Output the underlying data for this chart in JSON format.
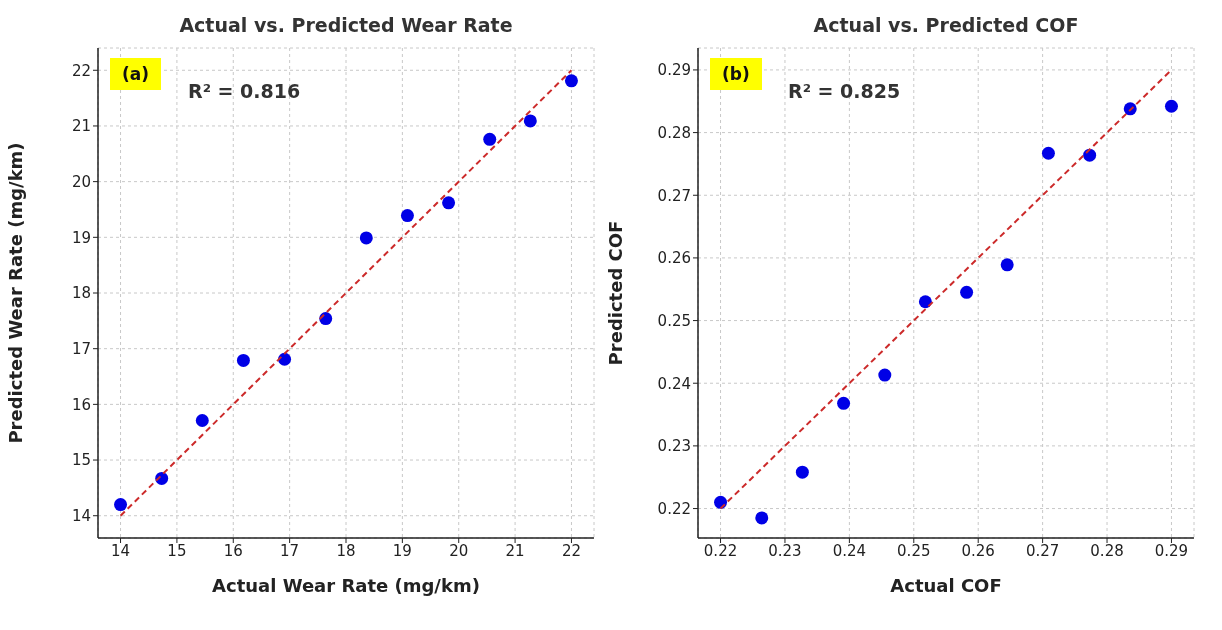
{
  "chart_data": [
    {
      "type": "scatter",
      "title": "Actual vs. Predicted Wear Rate",
      "xlabel": "Actual Wear Rate (mg/km)",
      "ylabel": "Predicted Wear Rate (mg/km)",
      "annotations": [
        "(a)",
        "R² = 0.816"
      ],
      "xlim": [
        13.6,
        22.4
      ],
      "ylim": [
        13.6,
        22.4
      ],
      "xticks": [
        14,
        15,
        16,
        17,
        18,
        19,
        20,
        21,
        22
      ],
      "yticks": [
        14,
        15,
        16,
        17,
        18,
        19,
        20,
        21,
        22
      ],
      "grid": true,
      "series": [
        {
          "marker": "circle",
          "color": "#0000e6",
          "x": [
            14,
            14.73,
            15.45,
            16.18,
            16.91,
            17.64,
            18.36,
            19.09,
            19.82,
            20.55,
            21.27,
            22
          ],
          "values": [
            14.2,
            14.67,
            15.71,
            16.79,
            16.81,
            17.54,
            18.99,
            19.39,
            19.62,
            20.76,
            21.09,
            21.81
          ]
        },
        {
          "type": "line",
          "marker": "none",
          "color": "#cc2a2a",
          "line_style": "dashed",
          "x": [
            14,
            22
          ],
          "values": [
            14,
            22
          ]
        }
      ]
    },
    {
      "type": "scatter",
      "title": "Actual vs. Predicted COF",
      "xlabel": "Actual COF",
      "ylabel": "Predicted COF",
      "annotations": [
        "(b)",
        "R² = 0.825"
      ],
      "xlim": [
        0.2165,
        0.2935
      ],
      "ylim": [
        0.2153,
        0.2935
      ],
      "xticks": [
        0.22,
        0.23,
        0.24,
        0.25,
        0.26,
        0.27,
        0.28,
        0.29
      ],
      "yticks": [
        0.22,
        0.23,
        0.24,
        0.25,
        0.26,
        0.27,
        0.28,
        0.29
      ],
      "grid": true,
      "series": [
        {
          "marker": "circle",
          "color": "#0000e6",
          "x": [
            0.22,
            0.2264,
            0.2327,
            0.2391,
            0.2455,
            0.2518,
            0.2582,
            0.2645,
            0.2709,
            0.2773,
            0.2836,
            0.29
          ],
          "values": [
            0.221,
            0.2185,
            0.2258,
            0.2368,
            0.2413,
            0.253,
            0.2545,
            0.2589,
            0.2767,
            0.2764,
            0.2838,
            0.2842
          ]
        },
        {
          "type": "line",
          "marker": "none",
          "color": "#cc2a2a",
          "line_style": "dashed",
          "x": [
            0.22,
            0.29
          ],
          "values": [
            0.22,
            0.29
          ]
        }
      ]
    }
  ]
}
